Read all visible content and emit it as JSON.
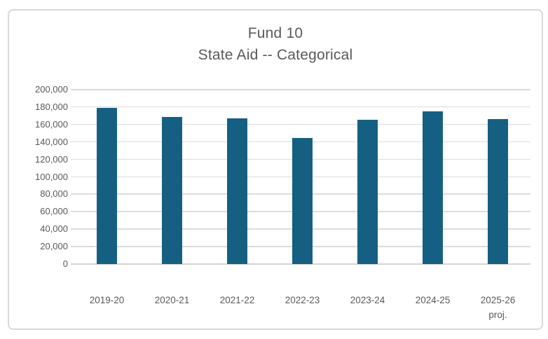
{
  "chart_data": {
    "type": "bar",
    "title_lines": [
      "Fund 10",
      "State Aid -- Categorical"
    ],
    "categories": [
      {
        "label": "2019-20"
      },
      {
        "label": "2020-21"
      },
      {
        "label": "2021-22"
      },
      {
        "label": "2022-23"
      },
      {
        "label": "2023-24"
      },
      {
        "label": "2024-25"
      },
      {
        "label": "2025-26",
        "sub": "proj."
      }
    ],
    "values": [
      179000,
      169000,
      167000,
      144500,
      165500,
      175500,
      166500
    ],
    "xlabel": "",
    "ylabel": "",
    "ylim": [
      0,
      200000
    ],
    "ytick_step": 20000,
    "ytick_labels": [
      "200,000",
      "180,000",
      "160,000",
      "140,000",
      "120,000",
      "100,000",
      "80,000",
      "60,000",
      "40,000",
      "20,000",
      "0"
    ],
    "grid": true,
    "legend_position": "none",
    "colors": {
      "bar": "#156082",
      "text": "#595959",
      "gridline": "#DBDBDB",
      "axis_line": "#D4D4D4",
      "frame_border": "#D9D9D9"
    }
  }
}
